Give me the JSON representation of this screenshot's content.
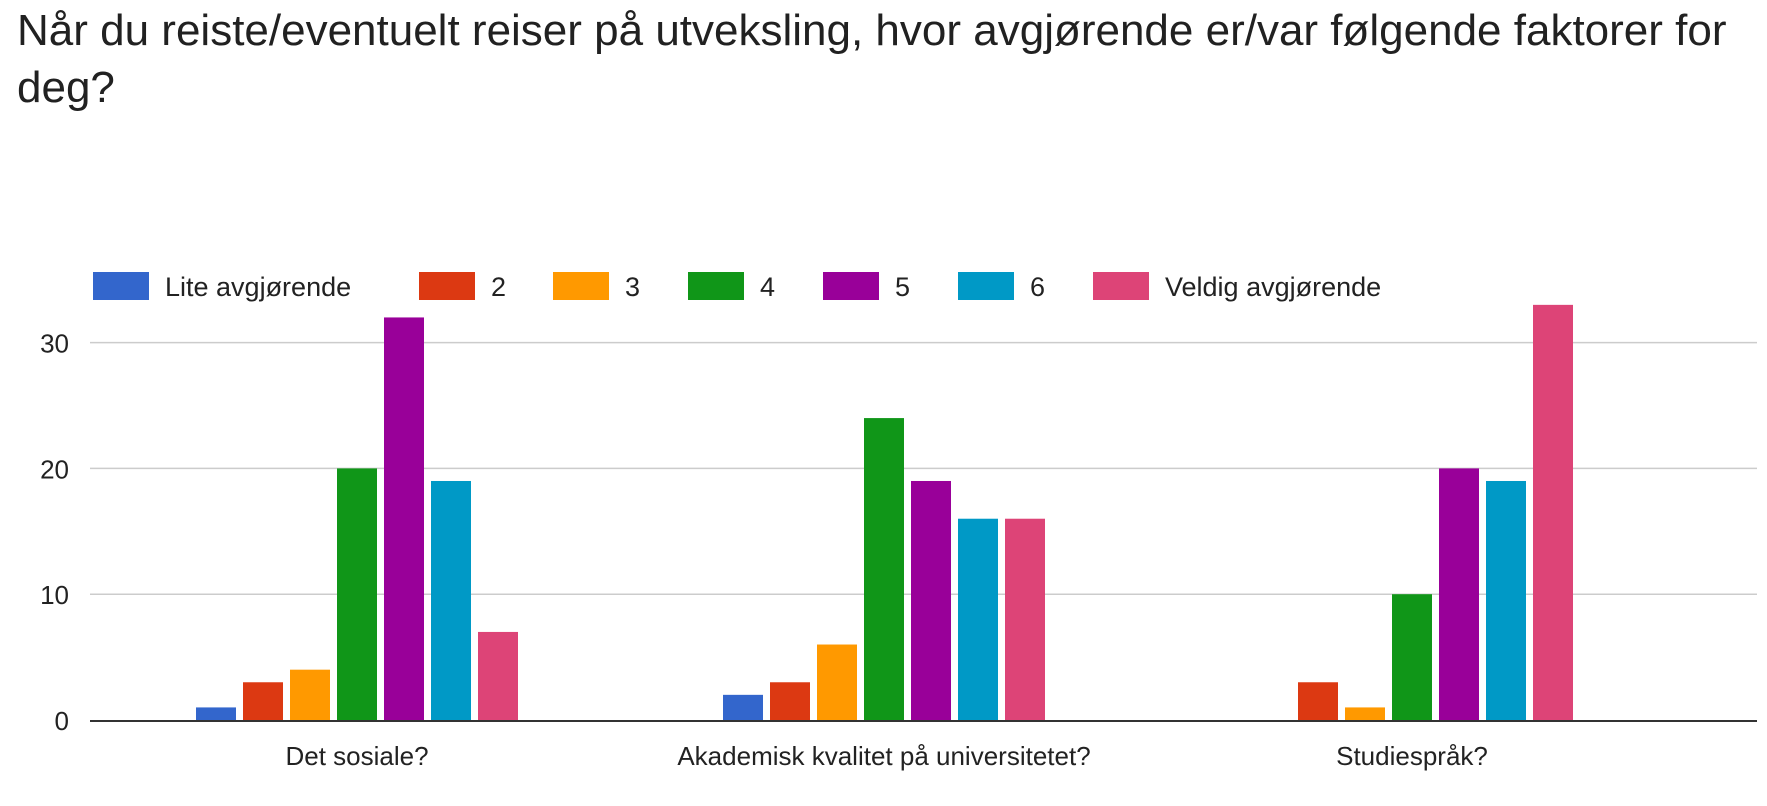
{
  "chart_data": {
    "type": "bar",
    "title": "Når du reiste/eventuelt reiser på utveksling, hvor avgjørende er/var følgende faktorer for deg?",
    "xlabel": "",
    "ylabel": "",
    "categories": [
      "Det sosiale?",
      "Akademisk kvalitet på universitetet?",
      "Studiespråk?"
    ],
    "series": [
      {
        "name": "Lite avgjørende",
        "color": "#3366cc",
        "values": [
          1,
          2,
          0
        ]
      },
      {
        "name": "2",
        "color": "#dc3912",
        "values": [
          3,
          3,
          3
        ]
      },
      {
        "name": "3",
        "color": "#ff9900",
        "values": [
          4,
          6,
          1
        ]
      },
      {
        "name": "4",
        "color": "#109618",
        "values": [
          20,
          24,
          10
        ]
      },
      {
        "name": "5",
        "color": "#990099",
        "values": [
          32,
          19,
          20
        ]
      },
      {
        "name": "6",
        "color": "#0099c6",
        "values": [
          19,
          16,
          19
        ]
      },
      {
        "name": "Veldig avgjørende",
        "color": "#dd4477",
        "values": [
          7,
          16,
          33
        ]
      }
    ],
    "ylim": [
      0,
      33
    ],
    "yticks": [
      0,
      10,
      20,
      30
    ],
    "grid": true,
    "legend_position": "top"
  }
}
